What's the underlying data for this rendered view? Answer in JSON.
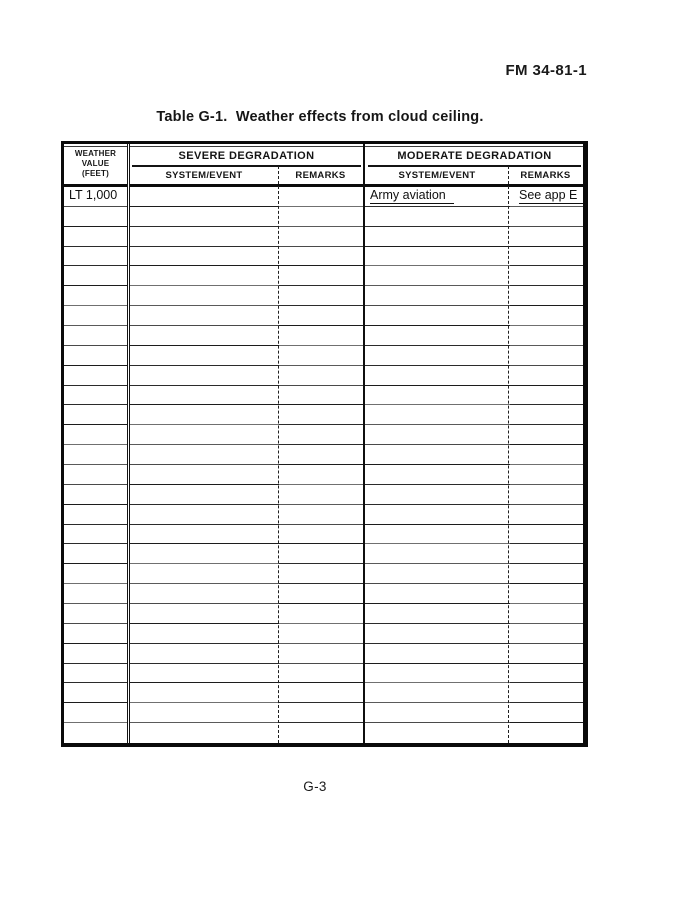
{
  "header": {
    "doc_ref": "FM 34-81-1"
  },
  "footer": {
    "page_number": "G-3"
  },
  "table": {
    "title": "Table G-1.  Weather effects from cloud ceiling.",
    "corner_header": {
      "lines": [
        "WEATHER",
        "VALUE",
        "(FEET)"
      ]
    },
    "sections": [
      {
        "label": "SEVERE DEGRADATION",
        "columns": [
          "SYSTEM/EVENT",
          "REMARKS"
        ]
      },
      {
        "label": "MODERATE DEGRADATION",
        "columns": [
          "SYSTEM/EVENT",
          "REMARKS"
        ]
      }
    ],
    "total_rows": 28,
    "rows": [
      {
        "weather_value": {
          "text": "LT 1,000",
          "underline": false
        },
        "severe_system_event": {
          "text": "",
          "underline": false
        },
        "severe_remarks": {
          "text": "",
          "underline": false
        },
        "moderate_system_event": {
          "text": "Army aviation",
          "underline": true
        },
        "moderate_remarks": {
          "text": "See app E",
          "underline": true
        }
      }
    ],
    "colors": {
      "line": "#1a1a1a",
      "text": "#111111",
      "paper": "#ffffff"
    }
  }
}
